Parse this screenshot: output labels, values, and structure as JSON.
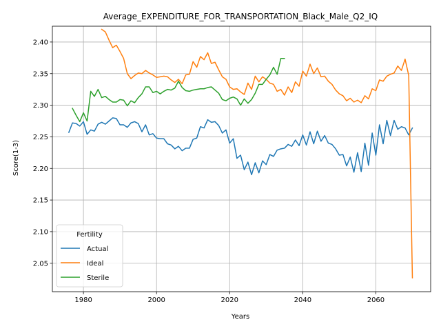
{
  "chart_data": {
    "type": "line",
    "title": "Average_EXPENDITURE_FOR_TRANSPORTATION_Black_Male_Q2_IQ",
    "xlabel": "Years",
    "ylabel": "Score(1-3)",
    "xlim": [
      1971.5,
      2075
    ],
    "ylim": [
      2.005,
      2.425
    ],
    "xticks": [
      1980,
      2000,
      2020,
      2040,
      2060
    ],
    "yticks": [
      2.05,
      2.1,
      2.15,
      2.2,
      2.25,
      2.3,
      2.35,
      2.4
    ],
    "ytick_labels": [
      "2.05",
      "2.10",
      "2.15",
      "2.20",
      "2.25",
      "2.30",
      "2.35",
      "2.40"
    ],
    "grid": true,
    "legend": {
      "title": "Fertility",
      "placement": "lower-left"
    },
    "series": [
      {
        "name": "Actual",
        "color": "#1f77b4",
        "x": [
          1976,
          1977,
          1978,
          1979,
          1980,
          1981,
          1982,
          1983,
          1984,
          1985,
          1986,
          1987,
          1988,
          1989,
          1990,
          1991,
          1992,
          1993,
          1994,
          1995,
          1996,
          1997,
          1998,
          1999,
          2000,
          2001,
          2002,
          2003,
          2004,
          2005,
          2006,
          2007,
          2008,
          2009,
          2010,
          2011,
          2012,
          2013,
          2014,
          2015,
          2016,
          2017,
          2018,
          2019,
          2020,
          2021,
          2022,
          2023,
          2024,
          2025,
          2026,
          2027,
          2028,
          2029,
          2030,
          2031,
          2032,
          2033,
          2034,
          2035,
          2036,
          2037,
          2038,
          2039,
          2040,
          2041,
          2042,
          2043,
          2044,
          2045,
          2046,
          2047,
          2048,
          2049,
          2050,
          2051,
          2052,
          2053,
          2054,
          2055,
          2056,
          2057,
          2058,
          2059,
          2060,
          2061,
          2062,
          2063,
          2064,
          2065,
          2066,
          2067,
          2068,
          2069,
          2070
        ],
        "y": [
          2.257,
          2.272,
          2.271,
          2.267,
          2.274,
          2.254,
          2.261,
          2.259,
          2.27,
          2.273,
          2.27,
          2.275,
          2.28,
          2.279,
          2.269,
          2.269,
          2.265,
          2.272,
          2.274,
          2.271,
          2.258,
          2.269,
          2.253,
          2.255,
          2.248,
          2.247,
          2.247,
          2.239,
          2.237,
          2.231,
          2.235,
          2.228,
          2.232,
          2.232,
          2.246,
          2.248,
          2.266,
          2.264,
          2.277,
          2.273,
          2.274,
          2.268,
          2.256,
          2.261,
          2.24,
          2.247,
          2.216,
          2.221,
          2.198,
          2.21,
          2.19,
          2.209,
          2.193,
          2.212,
          2.206,
          2.222,
          2.219,
          2.229,
          2.231,
          2.232,
          2.238,
          2.235,
          2.245,
          2.236,
          2.253,
          2.237,
          2.258,
          2.239,
          2.259,
          2.243,
          2.252,
          2.24,
          2.238,
          2.231,
          2.221,
          2.222,
          2.204,
          2.218,
          2.194,
          2.225,
          2.195,
          2.24,
          2.205,
          2.256,
          2.221,
          2.269,
          2.239,
          2.276,
          2.252,
          2.276,
          2.262,
          2.266,
          2.264,
          2.253,
          2.264
        ]
      },
      {
        "name": "Ideal",
        "color": "#ff7f0e",
        "x": [
          1985,
          1986,
          1987,
          1988,
          1989,
          1990,
          1991,
          1992,
          1993,
          1994,
          1995,
          1996,
          1997,
          1998,
          1999,
          2000,
          2001,
          2002,
          2003,
          2004,
          2005,
          2006,
          2007,
          2008,
          2009,
          2010,
          2011,
          2012,
          2013,
          2014,
          2015,
          2016,
          2017,
          2018,
          2019,
          2020,
          2021,
          2022,
          2023,
          2024,
          2025,
          2026,
          2027,
          2028,
          2029,
          2030,
          2031,
          2032,
          2033,
          2034,
          2035,
          2036,
          2037,
          2038,
          2039,
          2040,
          2041,
          2042,
          2043,
          2044,
          2045,
          2046,
          2047,
          2048,
          2049,
          2050,
          2051,
          2052,
          2053,
          2054,
          2055,
          2056,
          2057,
          2058,
          2059,
          2060,
          2061,
          2062,
          2063,
          2064,
          2065,
          2066,
          2067,
          2068,
          2069,
          2070
        ],
        "y": [
          2.42,
          2.416,
          2.403,
          2.391,
          2.395,
          2.385,
          2.374,
          2.35,
          2.342,
          2.347,
          2.351,
          2.35,
          2.355,
          2.351,
          2.348,
          2.344,
          2.345,
          2.346,
          2.345,
          2.34,
          2.336,
          2.341,
          2.334,
          2.348,
          2.349,
          2.369,
          2.36,
          2.377,
          2.372,
          2.383,
          2.366,
          2.368,
          2.356,
          2.345,
          2.341,
          2.329,
          2.325,
          2.326,
          2.321,
          2.317,
          2.335,
          2.325,
          2.346,
          2.337,
          2.345,
          2.341,
          2.335,
          2.333,
          2.322,
          2.325,
          2.316,
          2.329,
          2.32,
          2.337,
          2.33,
          2.354,
          2.346,
          2.365,
          2.35,
          2.359,
          2.345,
          2.346,
          2.338,
          2.333,
          2.324,
          2.318,
          2.315,
          2.307,
          2.311,
          2.305,
          2.308,
          2.304,
          2.315,
          2.31,
          2.326,
          2.323,
          2.34,
          2.338,
          2.346,
          2.349,
          2.351,
          2.362,
          2.355,
          2.373,
          2.347,
          2.027
        ]
      },
      {
        "name": "Sterile",
        "color": "#2ca02c",
        "x": [
          1977,
          1978,
          1979,
          1980,
          1981,
          1982,
          1983,
          1984,
          1985,
          1986,
          1987,
          1988,
          1989,
          1990,
          1991,
          1992,
          1993,
          1994,
          1995,
          1996,
          1997,
          1998,
          1999,
          2000,
          2001,
          2002,
          2003,
          2004,
          2005,
          2006,
          2007,
          2008,
          2009,
          2010,
          2011,
          2012,
          2013,
          2014,
          2015,
          2016,
          2017,
          2018,
          2019,
          2020,
          2021,
          2022,
          2023,
          2024,
          2025,
          2026,
          2027,
          2028,
          2029,
          2030,
          2031,
          2032,
          2033,
          2034,
          2035
        ],
        "y": [
          2.295,
          2.284,
          2.274,
          2.288,
          2.275,
          2.322,
          2.314,
          2.325,
          2.312,
          2.314,
          2.309,
          2.305,
          2.305,
          2.309,
          2.308,
          2.299,
          2.307,
          2.304,
          2.312,
          2.318,
          2.329,
          2.329,
          2.32,
          2.322,
          2.318,
          2.322,
          2.325,
          2.324,
          2.327,
          2.338,
          2.328,
          2.323,
          2.322,
          2.324,
          2.325,
          2.326,
          2.326,
          2.328,
          2.329,
          2.324,
          2.319,
          2.309,
          2.307,
          2.311,
          2.313,
          2.31,
          2.3,
          2.31,
          2.303,
          2.309,
          2.319,
          2.333,
          2.333,
          2.341,
          2.348,
          2.36,
          2.349,
          2.374,
          2.374
        ]
      }
    ]
  }
}
